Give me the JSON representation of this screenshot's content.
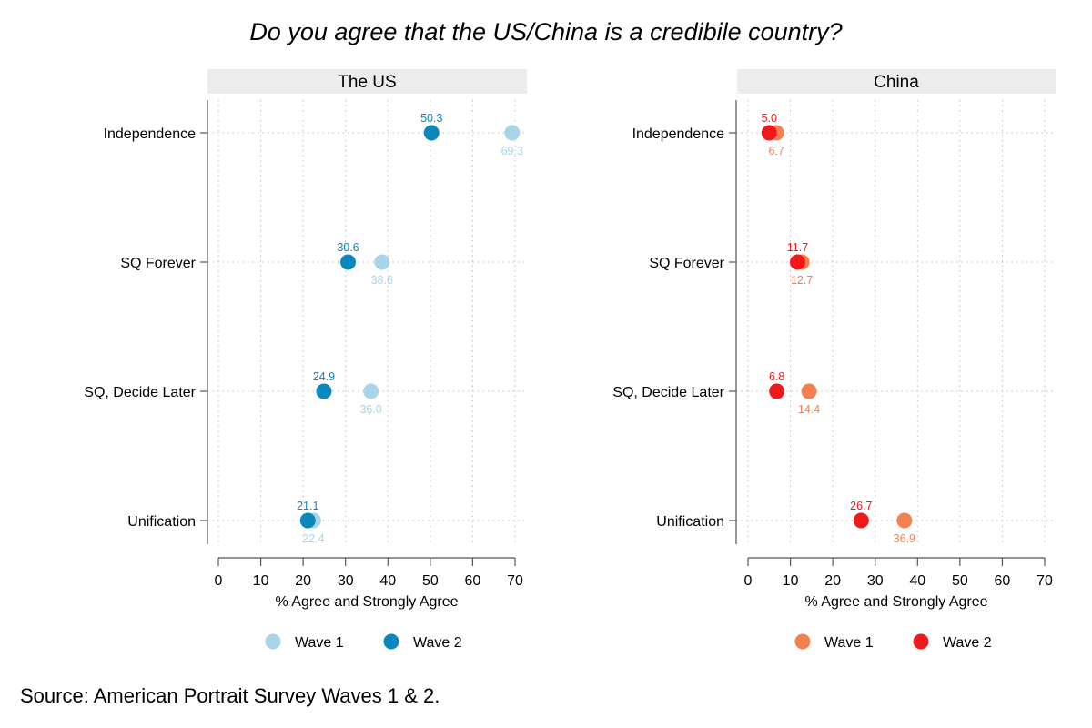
{
  "title": "Do you agree that the US/China is a credibile country?",
  "source": "Source: American Portrait Survey Waves 1 & 2.",
  "chart_data": [
    {
      "type": "scatter",
      "panel_title": "The US",
      "categories": [
        "Independence",
        "SQ Forever",
        "SQ, Decide Later",
        "Unification"
      ],
      "xlabel": "% Agree and Strongly Agree",
      "xlim": [
        0,
        70
      ],
      "xticks": [
        0,
        10,
        20,
        30,
        40,
        50,
        60,
        70
      ],
      "grid": true,
      "legend_position": "bottom",
      "series": [
        {
          "name": "Wave 1",
          "color": "#a8d4e6",
          "values": [
            69.3,
            38.6,
            36.0,
            22.4
          ],
          "labels": [
            "69.3",
            "38.6",
            "36.0",
            "22.4"
          ],
          "label_side": "below"
        },
        {
          "name": "Wave 2",
          "color": "#0a87bd",
          "values": [
            50.3,
            30.6,
            24.9,
            21.1
          ],
          "labels": [
            "50.3",
            "30.6",
            "24.9",
            "21.1"
          ],
          "label_side": "above"
        }
      ]
    },
    {
      "type": "scatter",
      "panel_title": "China",
      "categories": [
        "Independence",
        "SQ Forever",
        "SQ, Decide Later",
        "Unification"
      ],
      "xlabel": "% Agree and Strongly Agree",
      "xlim": [
        0,
        70
      ],
      "xticks": [
        0,
        10,
        20,
        30,
        40,
        50,
        60,
        70
      ],
      "grid": true,
      "legend_position": "bottom",
      "series": [
        {
          "name": "Wave 1",
          "color": "#f5804f",
          "values": [
            6.7,
            12.7,
            14.4,
            36.9
          ],
          "labels": [
            "6.7",
            "12.7",
            "14.4",
            "36.9"
          ],
          "label_side": "below"
        },
        {
          "name": "Wave 2",
          "color": "#f0181b",
          "values": [
            5.0,
            11.7,
            6.8,
            26.7
          ],
          "labels": [
            "5.0",
            "11.7",
            "6.8",
            "26.7"
          ],
          "label_side": "above"
        }
      ]
    }
  ]
}
